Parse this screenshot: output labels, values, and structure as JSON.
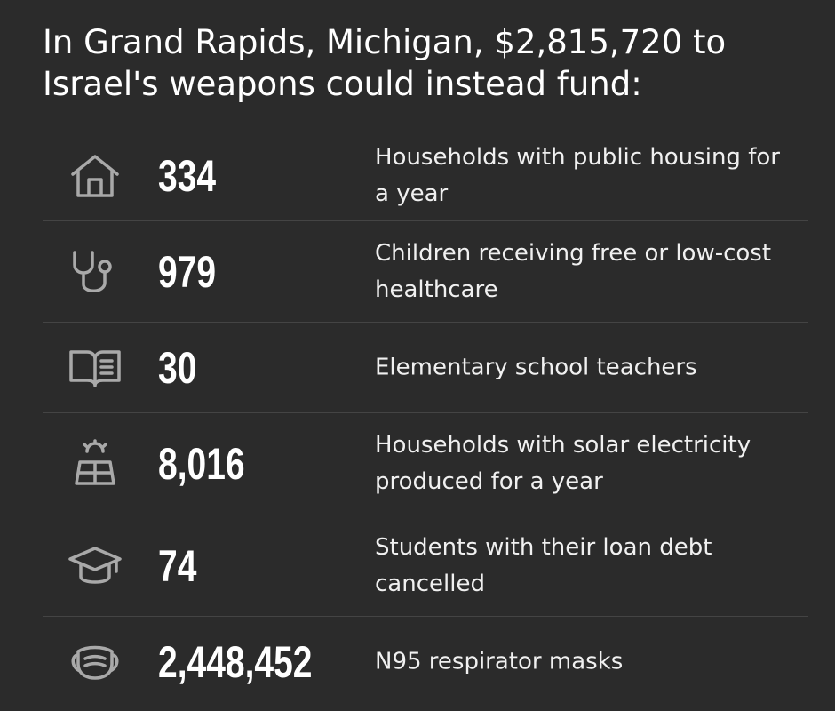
{
  "header": {
    "title": "In Grand Rapids, Michigan, $2,815,720 to Israel's weapons could instead fund:"
  },
  "rows": [
    {
      "number": "334",
      "label": "Households with public housing for a year"
    },
    {
      "number": "979",
      "label": "Children receiving free or low-cost healthcare"
    },
    {
      "number": "30",
      "label": "Elementary school teachers"
    },
    {
      "number": "8,016",
      "label": "Households with solar electricity produced for a year"
    },
    {
      "number": "74",
      "label": "Students with their loan debt cancelled"
    },
    {
      "number": "2,448,452",
      "label": "N95 respirator masks"
    }
  ]
}
